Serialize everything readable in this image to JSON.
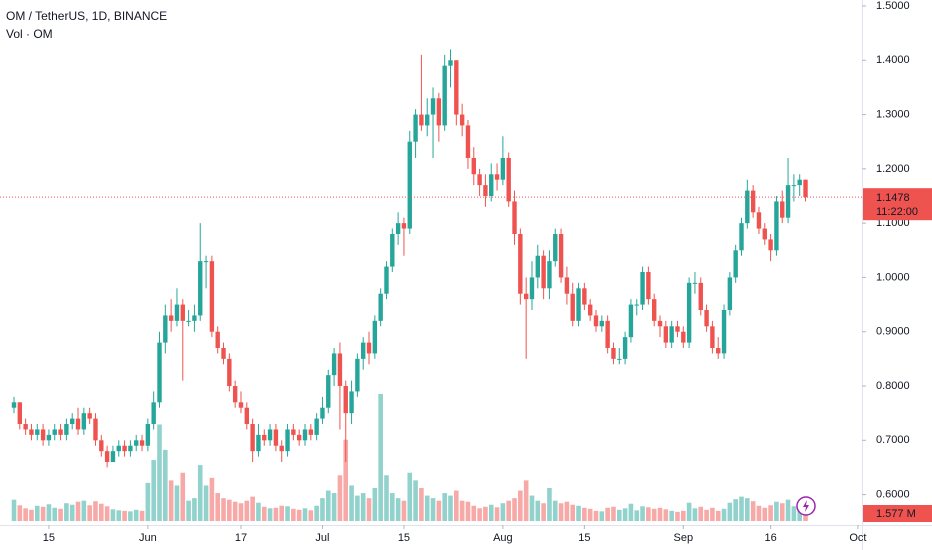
{
  "chart_data": {
    "type": "candlestick",
    "title": "OM / TetherUS, 1D, BINANCE",
    "subtitle": "Vol · OM",
    "up_color": "#26a69a",
    "down_color": "#ef5350",
    "ylim": [
      0.544,
      1.511
    ],
    "yticks": [
      {
        "value": 0.6,
        "label": "0.6000"
      },
      {
        "value": 0.7,
        "label": "0.7000"
      },
      {
        "value": 0.8,
        "label": "0.8000"
      },
      {
        "value": 0.9,
        "label": "0.9000"
      },
      {
        "value": 1.0,
        "label": "1.0000"
      },
      {
        "value": 1.1,
        "label": "1.1000"
      },
      {
        "value": 1.2,
        "label": "1.2000"
      },
      {
        "value": 1.3,
        "label": "1.3000"
      },
      {
        "value": 1.4,
        "label": "1.4000"
      },
      {
        "value": 1.5,
        "label": "1.5000"
      }
    ],
    "xticks": [
      {
        "value": "May 15",
        "label": "15"
      },
      {
        "value": "Jun 1",
        "label": "Jun"
      },
      {
        "value": "Jun 17",
        "label": "17"
      },
      {
        "value": "Jul 1",
        "label": "Jul"
      },
      {
        "value": "Jul 15",
        "label": "15"
      },
      {
        "value": "Aug 1",
        "label": "Aug"
      },
      {
        "value": "Aug 15",
        "label": "15"
      },
      {
        "value": "Sep 1",
        "label": "Sep"
      },
      {
        "value": "Sep 16",
        "label": "16"
      },
      {
        "value": "Oct 1",
        "label": "Oct"
      }
    ],
    "countdown": "11:22:00",
    "volume_last_label": "1.577 M",
    "x": [
      "May 9",
      "May 10",
      "May 11",
      "May 12",
      "May 13",
      "May 14",
      "May 15",
      "May 16",
      "May 17",
      "May 18",
      "May 19",
      "May 20",
      "May 21",
      "May 22",
      "May 23",
      "May 24",
      "May 25",
      "May 26",
      "May 27",
      "May 28",
      "May 29",
      "May 30",
      "May 31",
      "Jun 1",
      "Jun 2",
      "Jun 3",
      "Jun 4",
      "Jun 5",
      "Jun 6",
      "Jun 7",
      "Jun 8",
      "Jun 9",
      "Jun 10",
      "Jun 11",
      "Jun 12",
      "Jun 13",
      "Jun 14",
      "Jun 15",
      "Jun 16",
      "Jun 17",
      "Jun 18",
      "Jun 19",
      "Jun 20",
      "Jun 21",
      "Jun 22",
      "Jun 23",
      "Jun 24",
      "Jun 25",
      "Jun 26",
      "Jun 27",
      "Jun 28",
      "Jun 29",
      "Jun 30",
      "Jul 1",
      "Jul 2",
      "Jul 3",
      "Jul 4",
      "Jul 5",
      "Jul 6",
      "Jul 7",
      "Jul 8",
      "Jul 9",
      "Jul 10",
      "Jul 11",
      "Jul 12",
      "Jul 13",
      "Jul 14",
      "Jul 15",
      "Jul 16",
      "Jul 17",
      "Jul 18",
      "Jul 19",
      "Jul 20",
      "Jul 21",
      "Jul 22",
      "Jul 23",
      "Jul 24",
      "Jul 25",
      "Jul 26",
      "Jul 27",
      "Jul 28",
      "Jul 29",
      "Jul 30",
      "Jul 31",
      "Aug 1",
      "Aug 2",
      "Aug 3",
      "Aug 4",
      "Aug 5",
      "Aug 6",
      "Aug 7",
      "Aug 8",
      "Aug 9",
      "Aug 10",
      "Aug 11",
      "Aug 12",
      "Aug 13",
      "Aug 14",
      "Aug 15",
      "Aug 16",
      "Aug 17",
      "Aug 18",
      "Aug 19",
      "Aug 20",
      "Aug 21",
      "Aug 22",
      "Aug 23",
      "Aug 24",
      "Aug 25",
      "Aug 26",
      "Aug 27",
      "Aug 28",
      "Aug 29",
      "Aug 30",
      "Aug 31",
      "Sep 1",
      "Sep 2",
      "Sep 3",
      "Sep 4",
      "Sep 5",
      "Sep 6",
      "Sep 7",
      "Sep 8",
      "Sep 9",
      "Sep 10",
      "Sep 11",
      "Sep 12",
      "Sep 13",
      "Sep 14",
      "Sep 15",
      "Sep 16",
      "Sep 17",
      "Sep 18",
      "Sep 19",
      "Sep 20",
      "Sep 21",
      "Sep 22",
      "Sep 23",
      "Sep 24",
      "Sep 25",
      "Sep 26",
      "Sep 27",
      "Sep 28",
      "Sep 29",
      "Sep 30",
      "Oct 1"
    ],
    "candles": [
      [
        0.76,
        0.78,
        0.75,
        0.77,
        4.2
      ],
      [
        0.77,
        0.77,
        0.72,
        0.73,
        3.1
      ],
      [
        0.73,
        0.74,
        0.71,
        0.72,
        2.5
      ],
      [
        0.72,
        0.73,
        0.7,
        0.71,
        2.2
      ],
      [
        0.71,
        0.73,
        0.7,
        0.72,
        3.0
      ],
      [
        0.72,
        0.73,
        0.69,
        0.7,
        2.8
      ],
      [
        0.7,
        0.72,
        0.69,
        0.71,
        3.3
      ],
      [
        0.71,
        0.73,
        0.7,
        0.72,
        2.6
      ],
      [
        0.72,
        0.73,
        0.7,
        0.71,
        2.4
      ],
      [
        0.71,
        0.74,
        0.7,
        0.73,
        3.5
      ],
      [
        0.73,
        0.75,
        0.72,
        0.74,
        3.2
      ],
      [
        0.74,
        0.76,
        0.71,
        0.72,
        3.8
      ],
      [
        0.72,
        0.76,
        0.71,
        0.75,
        4.0
      ],
      [
        0.75,
        0.76,
        0.73,
        0.74,
        3.1
      ],
      [
        0.74,
        0.75,
        0.69,
        0.7,
        3.9
      ],
      [
        0.7,
        0.71,
        0.67,
        0.68,
        3.4
      ],
      [
        0.68,
        0.69,
        0.65,
        0.66,
        2.9
      ],
      [
        0.66,
        0.69,
        0.66,
        0.68,
        2.3
      ],
      [
        0.68,
        0.7,
        0.67,
        0.69,
        2.1
      ],
      [
        0.69,
        0.7,
        0.67,
        0.68,
        2.0
      ],
      [
        0.68,
        0.7,
        0.67,
        0.69,
        1.9
      ],
      [
        0.69,
        0.71,
        0.68,
        0.7,
        2.2
      ],
      [
        0.7,
        0.71,
        0.68,
        0.69,
        2.0
      ],
      [
        0.69,
        0.74,
        0.68,
        0.73,
        7.5
      ],
      [
        0.73,
        0.79,
        0.72,
        0.77,
        12.0
      ],
      [
        0.77,
        0.9,
        0.76,
        0.88,
        19.0
      ],
      [
        0.88,
        0.95,
        0.86,
        0.93,
        14.0
      ],
      [
        0.93,
        0.96,
        0.9,
        0.92,
        8.0
      ],
      [
        0.92,
        0.98,
        0.91,
        0.95,
        7.0
      ],
      [
        0.95,
        0.96,
        0.81,
        0.92,
        9.5
      ],
      [
        0.92,
        0.94,
        0.91,
        0.92,
        4.0
      ],
      [
        0.92,
        0.95,
        0.9,
        0.93,
        4.5
      ],
      [
        0.93,
        1.1,
        0.92,
        1.03,
        11.0
      ],
      [
        1.03,
        1.04,
        0.98,
        1.03,
        7.0
      ],
      [
        1.03,
        1.04,
        0.89,
        0.9,
        8.5
      ],
      [
        0.9,
        0.91,
        0.86,
        0.87,
        5.5
      ],
      [
        0.87,
        0.88,
        0.84,
        0.85,
        4.5
      ],
      [
        0.85,
        0.86,
        0.79,
        0.8,
        4.2
      ],
      [
        0.8,
        0.81,
        0.76,
        0.77,
        3.8
      ],
      [
        0.77,
        0.79,
        0.75,
        0.76,
        3.5
      ],
      [
        0.76,
        0.77,
        0.72,
        0.73,
        4.0
      ],
      [
        0.73,
        0.74,
        0.66,
        0.68,
        4.8
      ],
      [
        0.68,
        0.73,
        0.67,
        0.71,
        3.6
      ],
      [
        0.71,
        0.72,
        0.69,
        0.7,
        2.8
      ],
      [
        0.7,
        0.73,
        0.69,
        0.72,
        2.5
      ],
      [
        0.72,
        0.73,
        0.68,
        0.69,
        2.6
      ],
      [
        0.69,
        0.7,
        0.66,
        0.68,
        3.0
      ],
      [
        0.68,
        0.73,
        0.67,
        0.72,
        2.9
      ],
      [
        0.72,
        0.73,
        0.7,
        0.71,
        2.4
      ],
      [
        0.71,
        0.72,
        0.69,
        0.7,
        2.2
      ],
      [
        0.7,
        0.73,
        0.69,
        0.72,
        2.5
      ],
      [
        0.72,
        0.73,
        0.7,
        0.71,
        2.1
      ],
      [
        0.71,
        0.75,
        0.7,
        0.74,
        3.0
      ],
      [
        0.74,
        0.78,
        0.73,
        0.76,
        4.5
      ],
      [
        0.76,
        0.83,
        0.75,
        0.82,
        6.0
      ],
      [
        0.82,
        0.87,
        0.8,
        0.86,
        5.5
      ],
      [
        0.86,
        0.88,
        0.72,
        0.8,
        9.0
      ],
      [
        0.8,
        0.81,
        0.66,
        0.75,
        16.0
      ],
      [
        0.75,
        0.81,
        0.73,
        0.79,
        7.0
      ],
      [
        0.79,
        0.86,
        0.78,
        0.85,
        5.0
      ],
      [
        0.85,
        0.89,
        0.83,
        0.88,
        5.5
      ],
      [
        0.88,
        0.9,
        0.84,
        0.86,
        4.5
      ],
      [
        0.86,
        0.93,
        0.85,
        0.92,
        6.5
      ],
      [
        0.92,
        0.98,
        0.91,
        0.97,
        25.0
      ],
      [
        0.97,
        1.03,
        0.96,
        1.02,
        9.0
      ],
      [
        1.02,
        1.09,
        1.01,
        1.08,
        5.5
      ],
      [
        1.08,
        1.12,
        1.06,
        1.1,
        4.5
      ],
      [
        1.1,
        1.11,
        1.04,
        1.09,
        4.0
      ],
      [
        1.09,
        1.27,
        1.08,
        1.25,
        9.5
      ],
      [
        1.25,
        1.31,
        1.22,
        1.3,
        8.0
      ],
      [
        1.3,
        1.41,
        1.27,
        1.28,
        6.5
      ],
      [
        1.28,
        1.33,
        1.26,
        1.3,
        5.0
      ],
      [
        1.3,
        1.35,
        1.22,
        1.33,
        4.5
      ],
      [
        1.33,
        1.34,
        1.25,
        1.28,
        4.0
      ],
      [
        1.28,
        1.41,
        1.27,
        1.39,
        5.5
      ],
      [
        1.39,
        1.42,
        1.35,
        1.4,
        5.0
      ],
      [
        1.4,
        1.4,
        1.28,
        1.3,
        6.0
      ],
      [
        1.3,
        1.32,
        1.26,
        1.28,
        4.0
      ],
      [
        1.28,
        1.29,
        1.2,
        1.22,
        3.8
      ],
      [
        1.22,
        1.24,
        1.17,
        1.19,
        3.0
      ],
      [
        1.19,
        1.2,
        1.15,
        1.17,
        2.5
      ],
      [
        1.17,
        1.19,
        1.13,
        1.15,
        2.8
      ],
      [
        1.15,
        1.21,
        1.14,
        1.19,
        3.2
      ],
      [
        1.19,
        1.21,
        1.16,
        1.18,
        2.7
      ],
      [
        1.18,
        1.26,
        1.17,
        1.22,
        3.5
      ],
      [
        1.22,
        1.23,
        1.13,
        1.14,
        4.0
      ],
      [
        1.14,
        1.16,
        1.06,
        1.08,
        4.5
      ],
      [
        1.08,
        1.09,
        0.95,
        0.97,
        6.0
      ],
      [
        0.97,
        1.0,
        0.85,
        0.96,
        8.0
      ],
      [
        0.96,
        1.03,
        0.94,
        1.0,
        5.0
      ],
      [
        1.0,
        1.06,
        0.98,
        1.04,
        4.0
      ],
      [
        1.04,
        1.05,
        0.96,
        0.98,
        3.5
      ],
      [
        0.98,
        1.05,
        0.96,
        1.03,
        6.5
      ],
      [
        1.03,
        1.09,
        1.02,
        1.08,
        4.0
      ],
      [
        1.08,
        1.09,
        0.99,
        1.0,
        3.5
      ],
      [
        1.0,
        1.02,
        0.95,
        0.97,
        3.8
      ],
      [
        0.97,
        0.99,
        0.91,
        0.92,
        3.2
      ],
      [
        0.92,
        0.99,
        0.91,
        0.98,
        3.0
      ],
      [
        0.98,
        0.99,
        0.94,
        0.95,
        2.6
      ],
      [
        0.95,
        0.96,
        0.92,
        0.93,
        2.4
      ],
      [
        0.93,
        0.94,
        0.9,
        0.91,
        2.0
      ],
      [
        0.91,
        0.93,
        0.9,
        0.92,
        1.9
      ],
      [
        0.92,
        0.93,
        0.86,
        0.87,
        2.6
      ],
      [
        0.87,
        0.88,
        0.84,
        0.85,
        2.8
      ],
      [
        0.85,
        0.87,
        0.84,
        0.85,
        2.2
      ],
      [
        0.85,
        0.9,
        0.84,
        0.89,
        2.5
      ],
      [
        0.89,
        0.96,
        0.88,
        0.95,
        3.4
      ],
      [
        0.95,
        0.96,
        0.93,
        0.95,
        2.1
      ],
      [
        0.95,
        1.02,
        0.94,
        1.01,
        2.9
      ],
      [
        1.01,
        1.02,
        0.95,
        0.96,
        2.7
      ],
      [
        0.96,
        0.97,
        0.91,
        0.92,
        2.4
      ],
      [
        0.92,
        0.93,
        0.89,
        0.91,
        2.6
      ],
      [
        0.91,
        0.92,
        0.87,
        0.88,
        2.3
      ],
      [
        0.88,
        0.92,
        0.87,
        0.91,
        2.0
      ],
      [
        0.91,
        0.92,
        0.89,
        0.9,
        1.8
      ],
      [
        0.9,
        0.91,
        0.87,
        0.88,
        2.0
      ],
      [
        0.88,
        1.0,
        0.87,
        0.99,
        3.6
      ],
      [
        0.99,
        1.01,
        0.97,
        0.99,
        2.5
      ],
      [
        0.99,
        1.0,
        0.93,
        0.94,
        2.8
      ],
      [
        0.94,
        0.95,
        0.9,
        0.91,
        2.2
      ],
      [
        0.91,
        0.92,
        0.86,
        0.87,
        2.6
      ],
      [
        0.87,
        0.89,
        0.85,
        0.86,
        2.0
      ],
      [
        0.86,
        0.95,
        0.85,
        0.94,
        2.4
      ],
      [
        0.94,
        1.01,
        0.93,
        1.0,
        3.6
      ],
      [
        1.0,
        1.06,
        0.99,
        1.05,
        4.3
      ],
      [
        1.05,
        1.11,
        1.04,
        1.1,
        4.8
      ],
      [
        1.1,
        1.18,
        1.09,
        1.16,
        4.5
      ],
      [
        1.16,
        1.17,
        1.11,
        1.12,
        3.9
      ],
      [
        1.12,
        1.13,
        1.08,
        1.09,
        3.0
      ],
      [
        1.09,
        1.1,
        1.06,
        1.07,
        2.6
      ],
      [
        1.07,
        1.08,
        1.03,
        1.05,
        3.1
      ],
      [
        1.05,
        1.15,
        1.04,
        1.14,
        3.8
      ],
      [
        1.14,
        1.16,
        1.1,
        1.11,
        3.5
      ],
      [
        1.11,
        1.22,
        1.1,
        1.17,
        4.2
      ],
      [
        1.17,
        1.19,
        1.14,
        1.17,
        2.9
      ],
      [
        1.17,
        1.19,
        1.15,
        1.18,
        2.4
      ],
      [
        1.18,
        1.18,
        1.14,
        1.1478,
        1.577
      ]
    ]
  }
}
